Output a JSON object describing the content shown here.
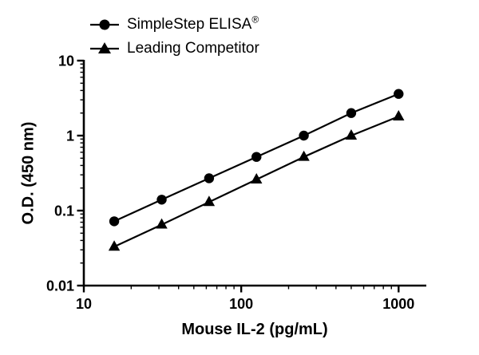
{
  "chart_data": {
    "type": "line",
    "title": "",
    "xlabel": "Mouse IL-2 (pg/mL)",
    "ylabel": "O.D. (450 nm)",
    "xscale": "log",
    "yscale": "log",
    "xlim": [
      10,
      1500
    ],
    "ylim": [
      0.01,
      10
    ],
    "grid": false,
    "legend_position": "top-left",
    "x": [
      15.6,
      31.25,
      62.5,
      125,
      250,
      500,
      1000
    ],
    "series": [
      {
        "name": "SimpleStep ELISA®",
        "marker": "circle",
        "color": "#000000",
        "values": [
          0.072,
          0.14,
          0.27,
          0.52,
          1.0,
          2.0,
          3.6
        ]
      },
      {
        "name": "Leading Competitor",
        "marker": "triangle",
        "color": "#000000",
        "values": [
          0.033,
          0.065,
          0.13,
          0.26,
          0.52,
          1.0,
          1.8
        ]
      }
    ],
    "xticks": {
      "values": [
        10,
        100,
        1000
      ],
      "labels": [
        "10",
        "100",
        "1000"
      ]
    },
    "yticks": {
      "values": [
        0.01,
        0.1,
        1,
        10
      ],
      "labels": [
        "0.01",
        "0.1",
        "1",
        "10"
      ]
    }
  },
  "legend": {
    "series": [
      {
        "label": "SimpleStep ELISA",
        "suffix": "®",
        "marker": "circle"
      },
      {
        "label": "Leading Competitor",
        "suffix": "",
        "marker": "triangle"
      }
    ]
  },
  "axes": {
    "x_title": "Mouse IL-2 (pg/mL)",
    "y_title": "O.D. (450 nm)"
  },
  "colors": {
    "line": "#000000",
    "background": "#ffffff"
  }
}
